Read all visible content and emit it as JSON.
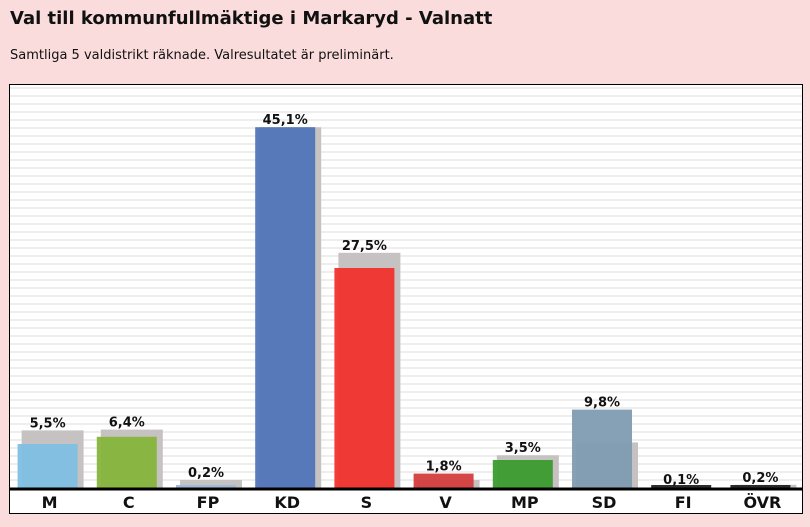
{
  "header": {
    "title": "Val till kommunfullmäktige i Markaryd - Valnatt",
    "subtitle": "Samtliga 5 valdistrikt räknade. Valresultatet är preliminärt."
  },
  "chart_data": {
    "type": "bar",
    "title": "",
    "xlabel": "",
    "ylabel": "",
    "ylim": [
      0,
      50
    ],
    "grid": true,
    "categories": [
      "M",
      "C",
      "FP",
      "KD",
      "S",
      "V",
      "MP",
      "SD",
      "FI",
      "ÖVR"
    ],
    "series": [
      {
        "name": "",
        "values": [
          5.5,
          6.4,
          0.2,
          45.1,
          27.5,
          1.8,
          3.5,
          9.8,
          0.1,
          0.2
        ],
        "labels": [
          "5,5%",
          "6,4%",
          "0,2%",
          "45,1%",
          "27,5%",
          "1,8%",
          "3,5%",
          "9,8%",
          "0,1%",
          "0,2%"
        ],
        "colors": [
          "#7fbfe3",
          "#86b43c",
          "#9db8d8",
          "#5174b8",
          "#f1322d",
          "#d43d3d",
          "#3c9b2e",
          "#7f9bb2",
          "#222222",
          "#222222"
        ]
      },
      {
        "name": "",
        "values": [
          7.2,
          7.3,
          1.0,
          45.1,
          29.4,
          1.0,
          4.1,
          5.7,
          0.0,
          0.4
        ],
        "color": "#c7c2c2"
      }
    ]
  }
}
